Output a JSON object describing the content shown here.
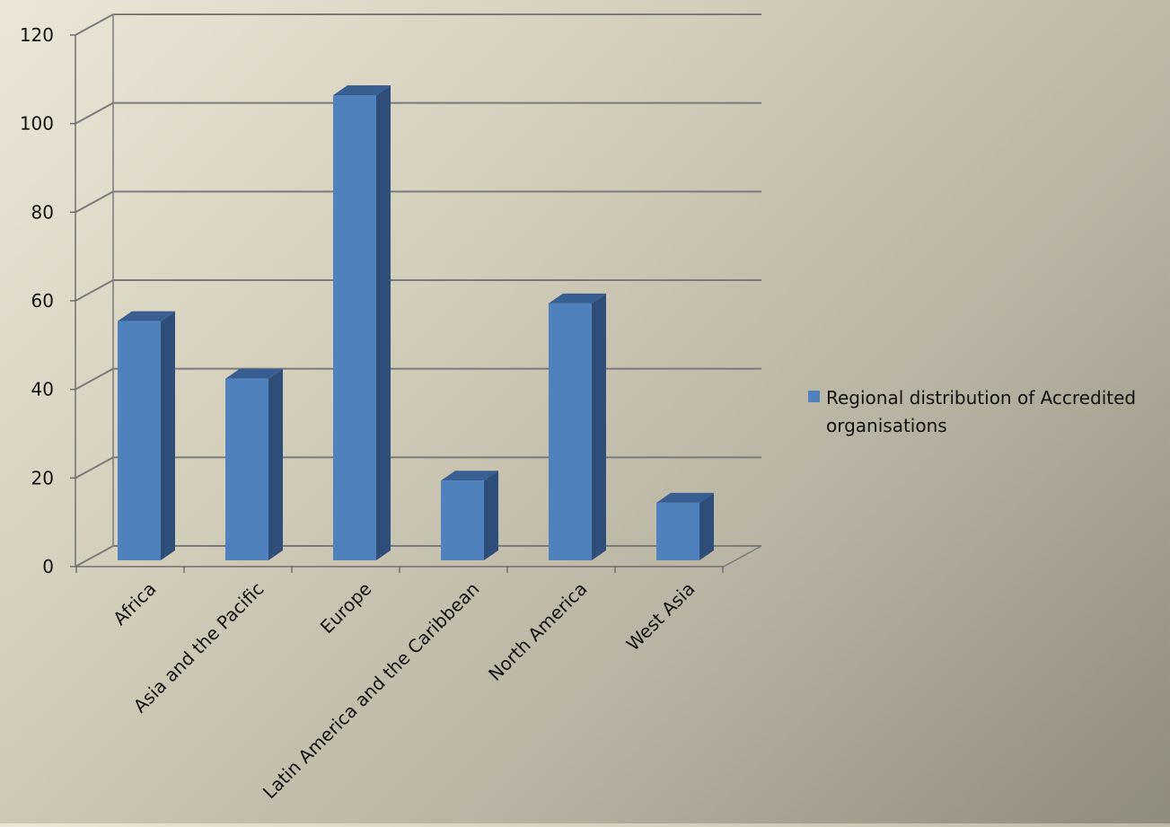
{
  "colors": {
    "bar_front": "#4f81bd",
    "bar_side": "#2f4f7a",
    "bar_top": "#395e92",
    "gridline": "#7a7a7a",
    "axis": "#6e6e6e"
  },
  "chart_data": {
    "type": "bar",
    "style": "3d-clustered-column",
    "title": "",
    "xlabel": "",
    "ylabel": "",
    "categories": [
      "Africa",
      "Asia and the Pacific",
      "Europe",
      "Latin America and the Caribbean",
      "North America",
      "West Asia"
    ],
    "series": [
      {
        "name": "Regional distribution of Accredited organisations",
        "values": [
          54,
          41,
          105,
          18,
          58,
          13
        ]
      }
    ],
    "ylim": [
      0,
      120
    ],
    "yticks": [
      0,
      20,
      40,
      60,
      80,
      100,
      120
    ],
    "ytick_labels": [
      "0",
      "20",
      "40",
      "60",
      "80",
      "100",
      "120"
    ],
    "grid": true,
    "legend_position": "right"
  }
}
